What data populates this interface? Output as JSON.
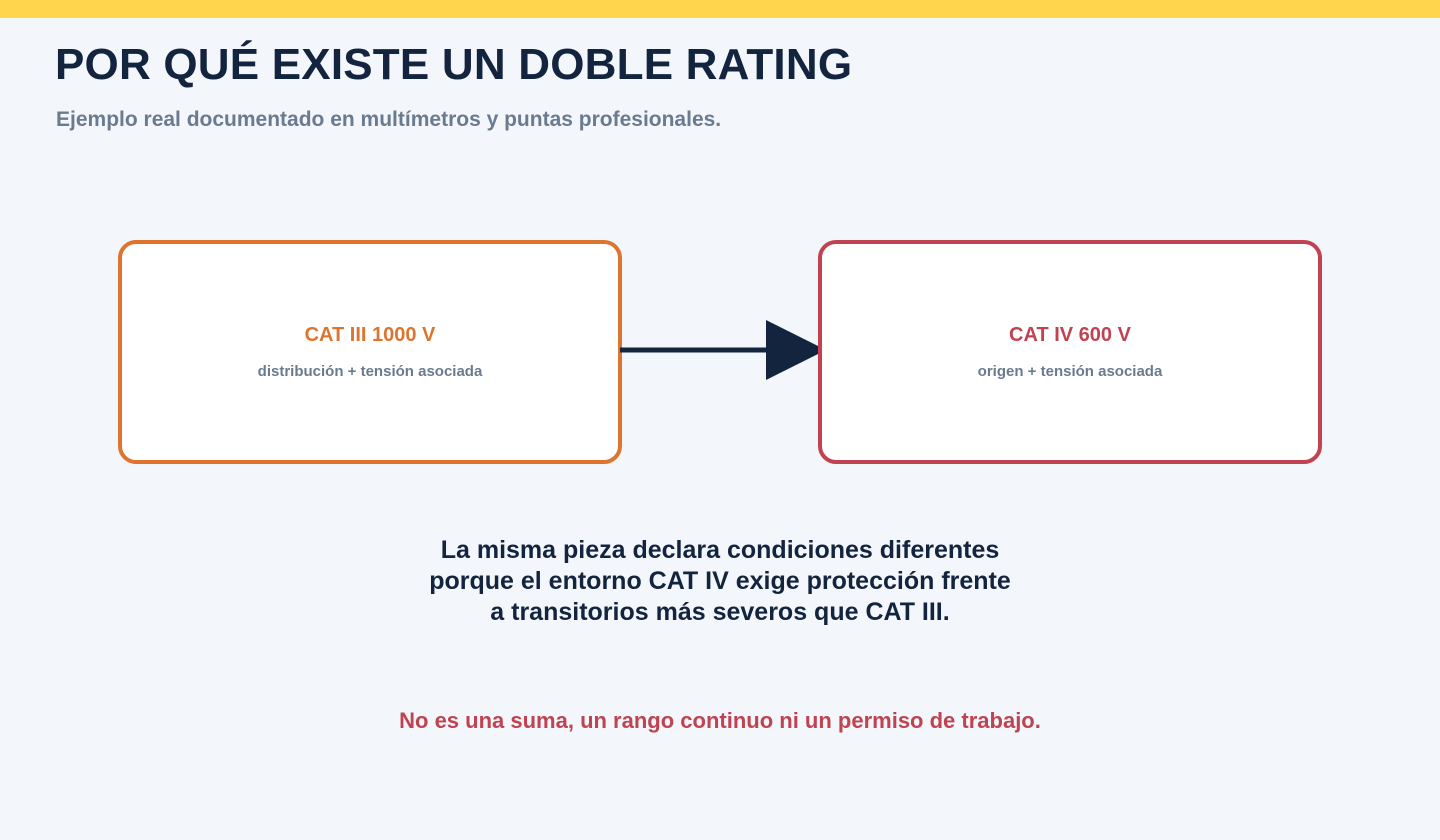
{
  "header": {
    "title": "POR QUÉ EXISTE UN DOBLE RATING",
    "subtitle": "Ejemplo real documentado en multímetros y puntas profesionales."
  },
  "diagram": {
    "left_box": {
      "title": "CAT III 1000 V",
      "subtitle": "distribución + tensión asociada",
      "color": "#dd7530"
    },
    "right_box": {
      "title": "CAT IV 600 V",
      "subtitle": "origen + tensión asociada",
      "color": "#bf4350"
    },
    "arrow_color": "#13243f"
  },
  "explanation": {
    "line1": "La misma pieza declara condiciones diferentes",
    "line2": "porque el entorno CAT IV exige protección frente",
    "line3": "a transitorios más severos que CAT III."
  },
  "warning": "No es una suma, un rango continuo ni un permiso de trabajo.",
  "colors": {
    "top_bar": "#ffd54d",
    "background": "#f3f6fb",
    "title": "#13243f",
    "muted": "#6a7b90"
  }
}
